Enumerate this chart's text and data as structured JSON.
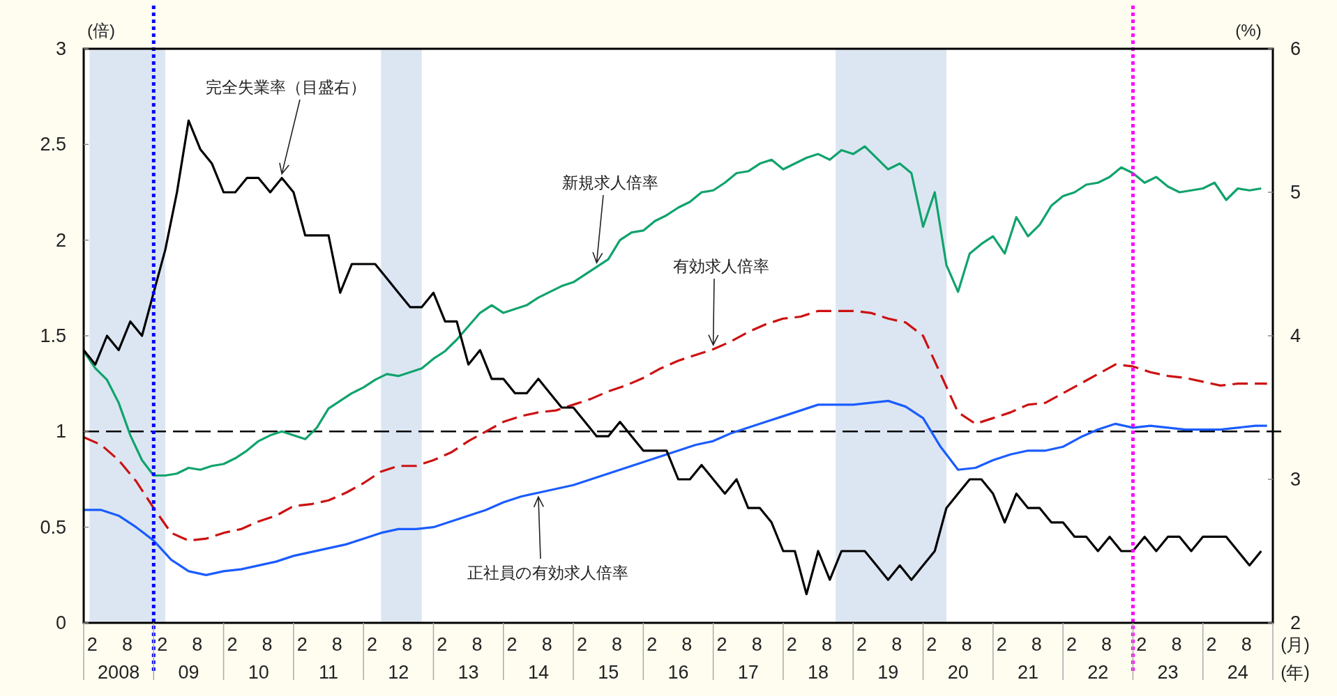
{
  "chart_data": {
    "type": "line",
    "ylabel": "(倍)",
    "y2label": "(%)",
    "xlabel": "(月)",
    "x2label": "(年)",
    "xlim": [
      "2008-01",
      "2025-01"
    ],
    "x2lim": [
      "2008-01",
      "2025-01"
    ],
    "ylim": [
      0,
      3
    ],
    "y2lim": [
      2,
      6
    ],
    "yticks": [
      0,
      0.5,
      1,
      1.5,
      2,
      2.5,
      3
    ],
    "y2ticks": [
      2,
      3,
      4,
      5,
      6
    ],
    "xticks": [
      {
        "value": "2008-02",
        "label": "2"
      },
      {
        "value": "2008-08",
        "label": "8"
      },
      {
        "value": "2009-02",
        "label": "2"
      },
      {
        "value": "2009-08",
        "label": "8"
      },
      {
        "value": "2010-02",
        "label": "2"
      },
      {
        "value": "2010-08",
        "label": "8"
      },
      {
        "value": "2011-02",
        "label": "2"
      },
      {
        "value": "2011-08",
        "label": "8"
      },
      {
        "value": "2012-02",
        "label": "2"
      },
      {
        "value": "2012-08",
        "label": "8"
      },
      {
        "value": "2013-02",
        "label": "2"
      },
      {
        "value": "2013-08",
        "label": "8"
      },
      {
        "value": "2014-02",
        "label": "2"
      },
      {
        "value": "2014-08",
        "label": "8"
      },
      {
        "value": "2015-02",
        "label": "2"
      },
      {
        "value": "2015-08",
        "label": "8"
      },
      {
        "value": "2016-02",
        "label": "2"
      },
      {
        "value": "2016-08",
        "label": "8"
      },
      {
        "value": "2017-02",
        "label": "2"
      },
      {
        "value": "2017-08",
        "label": "8"
      },
      {
        "value": "2018-02",
        "label": "2"
      },
      {
        "value": "2018-08",
        "label": "8"
      },
      {
        "value": "2019-02",
        "label": "2"
      },
      {
        "value": "2019-08",
        "label": "8"
      },
      {
        "value": "2020-02",
        "label": "2"
      },
      {
        "value": "2020-08",
        "label": "8"
      },
      {
        "value": "2021-02",
        "label": "2"
      },
      {
        "value": "2021-08",
        "label": "8"
      },
      {
        "value": "2022-02",
        "label": "2"
      },
      {
        "value": "2022-08",
        "label": "8"
      },
      {
        "value": "2023-02",
        "label": "2"
      },
      {
        "value": "2023-08",
        "label": "8"
      },
      {
        "value": "2024-02",
        "label": "2"
      },
      {
        "value": "2024-08",
        "label": "8"
      }
    ],
    "x2ticks": [
      {
        "value": "2008-07",
        "label": "2008"
      },
      {
        "value": "2009-07",
        "label": "09"
      },
      {
        "value": "2010-07",
        "label": "10"
      },
      {
        "value": "2011-07",
        "label": "11"
      },
      {
        "value": "2012-07",
        "label": "12"
      },
      {
        "value": "2013-07",
        "label": "13"
      },
      {
        "value": "2014-07",
        "label": "14"
      },
      {
        "value": "2015-07",
        "label": "15"
      },
      {
        "value": "2016-07",
        "label": "16"
      },
      {
        "value": "2017-07",
        "label": "17"
      },
      {
        "value": "2018-07",
        "label": "18"
      },
      {
        "value": "2019-07",
        "label": "19"
      },
      {
        "value": "2020-07",
        "label": "20"
      },
      {
        "value": "2021-07",
        "label": "21"
      },
      {
        "value": "2022-07",
        "label": "22"
      },
      {
        "value": "2023-07",
        "label": "23"
      },
      {
        "value": "2024-07",
        "label": "24"
      }
    ],
    "bands": [
      {
        "axis": "x",
        "from": "2008-02",
        "to": "2009-03",
        "color": "#dce6f2"
      },
      {
        "axis": "x",
        "from": "2012-04",
        "to": "2012-11",
        "color": "#dce6f2"
      },
      {
        "axis": "x",
        "from": "2018-10",
        "to": "2020-05",
        "color": "#dce6f2"
      }
    ],
    "ref_lines": [
      {
        "axis": "y",
        "value": 1,
        "color": "#000000",
        "line_style": "dashed"
      },
      {
        "axis": "x",
        "value": "2009-01",
        "color": "#0000ff",
        "line_style": "dotted"
      },
      {
        "axis": "x",
        "value": "2023-01",
        "color": "#ff00ff",
        "line_style": "dotted"
      }
    ],
    "series": [
      {
        "name": "新規求人倍率",
        "color": "#10a36c",
        "line_style": "solid",
        "x": [
          "2008-01",
          "2008-03",
          "2008-05",
          "2008-07",
          "2008-09",
          "2008-11",
          "2009-01",
          "2009-03",
          "2009-05",
          "2009-07",
          "2009-09",
          "2009-11",
          "2010-01",
          "2010-03",
          "2010-05",
          "2010-07",
          "2010-09",
          "2010-11",
          "2011-01",
          "2011-03",
          "2011-05",
          "2011-07",
          "2011-09",
          "2011-11",
          "2012-01",
          "2012-03",
          "2012-05",
          "2012-07",
          "2012-09",
          "2012-11",
          "2013-01",
          "2013-03",
          "2013-05",
          "2013-07",
          "2013-09",
          "2013-11",
          "2014-01",
          "2014-03",
          "2014-05",
          "2014-07",
          "2014-09",
          "2014-11",
          "2015-01",
          "2015-03",
          "2015-05",
          "2015-07",
          "2015-09",
          "2015-11",
          "2016-01",
          "2016-03",
          "2016-05",
          "2016-07",
          "2016-09",
          "2016-11",
          "2017-01",
          "2017-03",
          "2017-05",
          "2017-07",
          "2017-09",
          "2017-11",
          "2018-01",
          "2018-03",
          "2018-05",
          "2018-07",
          "2018-09",
          "2018-11",
          "2019-01",
          "2019-03",
          "2019-05",
          "2019-07",
          "2019-09",
          "2019-11",
          "2020-01",
          "2020-03",
          "2020-05",
          "2020-07",
          "2020-09",
          "2020-11",
          "2021-01",
          "2021-03",
          "2021-05",
          "2021-07",
          "2021-09",
          "2021-11",
          "2022-01",
          "2022-03",
          "2022-05",
          "2022-07",
          "2022-09",
          "2022-11",
          "2023-01",
          "2023-03",
          "2023-05",
          "2023-07",
          "2023-09",
          "2023-11",
          "2024-01",
          "2024-03",
          "2024-05",
          "2024-07",
          "2024-09",
          "2024-11"
        ],
        "values": [
          1.42,
          1.33,
          1.27,
          1.15,
          0.98,
          0.85,
          0.77,
          0.77,
          0.78,
          0.81,
          0.8,
          0.82,
          0.83,
          0.86,
          0.9,
          0.95,
          0.98,
          1.0,
          0.98,
          0.96,
          1.02,
          1.12,
          1.16,
          1.2,
          1.23,
          1.27,
          1.3,
          1.29,
          1.31,
          1.33,
          1.38,
          1.42,
          1.48,
          1.55,
          1.62,
          1.66,
          1.62,
          1.64,
          1.66,
          1.7,
          1.73,
          1.76,
          1.78,
          1.82,
          1.86,
          1.9,
          2.0,
          2.04,
          2.05,
          2.1,
          2.13,
          2.17,
          2.2,
          2.25,
          2.26,
          2.3,
          2.35,
          2.36,
          2.4,
          2.42,
          2.37,
          2.4,
          2.43,
          2.45,
          2.42,
          2.47,
          2.45,
          2.49,
          2.43,
          2.37,
          2.4,
          2.35,
          2.07,
          2.25,
          1.87,
          1.73,
          1.93,
          1.98,
          2.02,
          1.93,
          2.12,
          2.02,
          2.08,
          2.18,
          2.23,
          2.25,
          2.29,
          2.3,
          2.33,
          2.38,
          2.35,
          2.3,
          2.33,
          2.28,
          2.25,
          2.26,
          2.27,
          2.3,
          2.21,
          2.27,
          2.26,
          2.27
        ]
      },
      {
        "name": "有効求人倍率",
        "color": "#cc1111",
        "line_style": "dashed",
        "x": [
          "2008-01",
          "2008-04",
          "2008-07",
          "2008-10",
          "2009-01",
          "2009-04",
          "2009-07",
          "2009-10",
          "2010-01",
          "2010-04",
          "2010-07",
          "2010-10",
          "2011-01",
          "2011-04",
          "2011-07",
          "2011-10",
          "2012-01",
          "2012-04",
          "2012-07",
          "2012-10",
          "2013-01",
          "2013-04",
          "2013-07",
          "2013-10",
          "2014-01",
          "2014-04",
          "2014-07",
          "2014-10",
          "2015-01",
          "2015-04",
          "2015-07",
          "2015-10",
          "2016-01",
          "2016-04",
          "2016-07",
          "2016-10",
          "2017-01",
          "2017-04",
          "2017-07",
          "2017-10",
          "2018-01",
          "2018-04",
          "2018-07",
          "2018-10",
          "2019-01",
          "2019-04",
          "2019-07",
          "2019-10",
          "2020-01",
          "2020-04",
          "2020-07",
          "2020-10",
          "2021-01",
          "2021-04",
          "2021-07",
          "2021-10",
          "2022-01",
          "2022-04",
          "2022-07",
          "2022-10",
          "2023-01",
          "2023-04",
          "2023-07",
          "2023-10",
          "2024-01",
          "2024-04",
          "2024-07",
          "2024-10",
          "2024-12"
        ],
        "values": [
          0.97,
          0.93,
          0.85,
          0.74,
          0.6,
          0.47,
          0.43,
          0.44,
          0.47,
          0.49,
          0.53,
          0.56,
          0.61,
          0.62,
          0.64,
          0.68,
          0.73,
          0.79,
          0.82,
          0.82,
          0.85,
          0.89,
          0.95,
          1.0,
          1.05,
          1.08,
          1.1,
          1.11,
          1.14,
          1.17,
          1.21,
          1.24,
          1.28,
          1.33,
          1.37,
          1.4,
          1.43,
          1.47,
          1.52,
          1.56,
          1.59,
          1.6,
          1.63,
          1.63,
          1.63,
          1.62,
          1.59,
          1.57,
          1.5,
          1.3,
          1.1,
          1.04,
          1.07,
          1.1,
          1.14,
          1.15,
          1.2,
          1.25,
          1.3,
          1.35,
          1.34,
          1.31,
          1.29,
          1.28,
          1.26,
          1.24,
          1.25,
          1.25,
          1.25
        ]
      },
      {
        "name": "正社員の有効求人倍率",
        "color": "#1a5cff",
        "line_style": "solid",
        "x": [
          "2008-01",
          "2008-04",
          "2008-07",
          "2008-10",
          "2009-01",
          "2009-04",
          "2009-07",
          "2009-10",
          "2010-01",
          "2010-04",
          "2010-07",
          "2010-10",
          "2011-01",
          "2011-04",
          "2011-07",
          "2011-10",
          "2012-01",
          "2012-04",
          "2012-07",
          "2012-10",
          "2013-01",
          "2013-04",
          "2013-07",
          "2013-10",
          "2014-01",
          "2014-04",
          "2014-07",
          "2014-10",
          "2015-01",
          "2015-04",
          "2015-07",
          "2015-10",
          "2016-01",
          "2016-04",
          "2016-07",
          "2016-10",
          "2017-01",
          "2017-04",
          "2017-07",
          "2017-10",
          "2018-01",
          "2018-04",
          "2018-07",
          "2018-10",
          "2019-01",
          "2019-04",
          "2019-07",
          "2019-10",
          "2020-01",
          "2020-04",
          "2020-07",
          "2020-10",
          "2021-01",
          "2021-04",
          "2021-07",
          "2021-10",
          "2022-01",
          "2022-04",
          "2022-07",
          "2022-10",
          "2023-01",
          "2023-04",
          "2023-07",
          "2023-10",
          "2024-01",
          "2024-04",
          "2024-07",
          "2024-10",
          "2024-12"
        ],
        "values": [
          0.59,
          0.59,
          0.56,
          0.5,
          0.43,
          0.33,
          0.27,
          0.25,
          0.27,
          0.28,
          0.3,
          0.32,
          0.35,
          0.37,
          0.39,
          0.41,
          0.44,
          0.47,
          0.49,
          0.49,
          0.5,
          0.53,
          0.56,
          0.59,
          0.63,
          0.66,
          0.68,
          0.7,
          0.72,
          0.75,
          0.78,
          0.81,
          0.84,
          0.87,
          0.9,
          0.93,
          0.95,
          0.99,
          1.02,
          1.05,
          1.08,
          1.11,
          1.14,
          1.14,
          1.14,
          1.15,
          1.16,
          1.13,
          1.07,
          0.92,
          0.8,
          0.81,
          0.85,
          0.88,
          0.9,
          0.9,
          0.92,
          0.97,
          1.01,
          1.04,
          1.02,
          1.03,
          1.02,
          1.01,
          1.01,
          1.01,
          1.02,
          1.03,
          1.03
        ]
      },
      {
        "name": "完全失業率（目盛右）",
        "color": "#000000",
        "line_style": "solid",
        "axis": "y2",
        "x": [
          "2008-01",
          "2008-03",
          "2008-05",
          "2008-07",
          "2008-09",
          "2008-11",
          "2009-01",
          "2009-03",
          "2009-05",
          "2009-07",
          "2009-09",
          "2009-11",
          "2010-01",
          "2010-03",
          "2010-05",
          "2010-07",
          "2010-09",
          "2010-11",
          "2011-01",
          "2011-03",
          "2011-05",
          "2011-07",
          "2011-09",
          "2011-11",
          "2012-01",
          "2012-03",
          "2012-05",
          "2012-07",
          "2012-09",
          "2012-11",
          "2013-01",
          "2013-03",
          "2013-05",
          "2013-07",
          "2013-09",
          "2013-11",
          "2014-01",
          "2014-03",
          "2014-05",
          "2014-07",
          "2014-09",
          "2014-11",
          "2015-01",
          "2015-03",
          "2015-05",
          "2015-07",
          "2015-09",
          "2015-11",
          "2016-01",
          "2016-03",
          "2016-05",
          "2016-07",
          "2016-09",
          "2016-11",
          "2017-01",
          "2017-03",
          "2017-05",
          "2017-07",
          "2017-09",
          "2017-11",
          "2018-01",
          "2018-03",
          "2018-05",
          "2018-07",
          "2018-09",
          "2018-11",
          "2019-01",
          "2019-03",
          "2019-05",
          "2019-07",
          "2019-09",
          "2019-11",
          "2020-01",
          "2020-03",
          "2020-05",
          "2020-07",
          "2020-09",
          "2020-11",
          "2021-01",
          "2021-03",
          "2021-05",
          "2021-07",
          "2021-09",
          "2021-11",
          "2022-01",
          "2022-03",
          "2022-05",
          "2022-07",
          "2022-09",
          "2022-11",
          "2023-01",
          "2023-03",
          "2023-05",
          "2023-07",
          "2023-09",
          "2023-11",
          "2024-01",
          "2024-03",
          "2024-05",
          "2024-07",
          "2024-09",
          "2024-11"
        ],
        "values": [
          3.9,
          3.8,
          4.0,
          3.9,
          4.1,
          4.0,
          4.3,
          4.6,
          5.0,
          5.5,
          5.3,
          5.2,
          5.0,
          5.0,
          5.1,
          5.1,
          5.0,
          5.1,
          5.0,
          4.7,
          4.7,
          4.7,
          4.3,
          4.5,
          4.5,
          4.5,
          4.4,
          4.3,
          4.2,
          4.2,
          4.3,
          4.1,
          4.1,
          3.8,
          3.9,
          3.7,
          3.7,
          3.6,
          3.6,
          3.7,
          3.6,
          3.5,
          3.5,
          3.4,
          3.3,
          3.3,
          3.4,
          3.3,
          3.2,
          3.2,
          3.2,
          3.0,
          3.0,
          3.1,
          3.0,
          2.9,
          3.0,
          2.8,
          2.8,
          2.7,
          2.5,
          2.5,
          2.2,
          2.5,
          2.3,
          2.5,
          2.5,
          2.5,
          2.4,
          2.3,
          2.4,
          2.3,
          2.4,
          2.5,
          2.8,
          2.9,
          3.0,
          3.0,
          2.9,
          2.7,
          2.9,
          2.8,
          2.8,
          2.7,
          2.7,
          2.6,
          2.6,
          2.5,
          2.6,
          2.5,
          2.5,
          2.6,
          2.5,
          2.6,
          2.6,
          2.5,
          2.6,
          2.6,
          2.6,
          2.5,
          2.4,
          2.5
        ]
      }
    ]
  }
}
